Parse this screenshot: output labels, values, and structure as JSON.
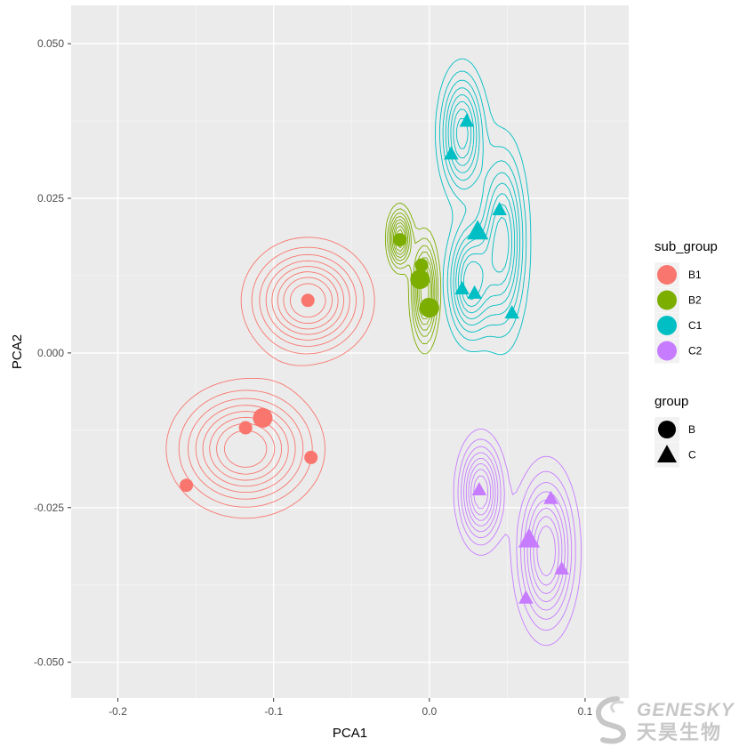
{
  "chart_data": {
    "type": "scatter",
    "title": "",
    "xlabel": "PCA1",
    "ylabel": "PCA2",
    "xlim": [
      -0.23,
      0.128
    ],
    "ylim": [
      -0.0558,
      0.0562
    ],
    "x_ticks": [
      -0.2,
      -0.1,
      0.0,
      0.1
    ],
    "x_tick_labels": [
      "-0.2",
      "-0.1",
      "0.0",
      "0.1"
    ],
    "y_ticks": [
      -0.05,
      -0.025,
      0.0,
      0.025,
      0.05
    ],
    "y_tick_labels": [
      "-0.050",
      "-0.025",
      "0.000",
      "0.025",
      "0.050"
    ],
    "grid": true,
    "panel_background": "#ebebeb",
    "legend_position": "right",
    "legends": [
      {
        "title": "sub_group",
        "entries": [
          {
            "label": "B1",
            "color": "#f8766d"
          },
          {
            "label": "B2",
            "color": "#7cae00"
          },
          {
            "label": "C1",
            "color": "#00bfc4"
          },
          {
            "label": "C2",
            "color": "#c77cff"
          }
        ]
      },
      {
        "title": "group",
        "entries": [
          {
            "label": "B",
            "shape": "circle"
          },
          {
            "label": "C",
            "shape": "triangle"
          }
        ]
      }
    ],
    "series": [
      {
        "sub_group": "B1",
        "group": "B",
        "shape": "circle",
        "color": "#f8766d",
        "points": [
          {
            "x": -0.078,
            "y": 0.0085,
            "big": false
          },
          {
            "x": -0.107,
            "y": -0.0105,
            "big": true
          },
          {
            "x": -0.118,
            "y": -0.0121,
            "big": false
          },
          {
            "x": -0.076,
            "y": -0.0169,
            "big": false
          },
          {
            "x": -0.156,
            "y": -0.0214,
            "big": false
          }
        ],
        "density_clusters": [
          {
            "x": -0.078,
            "y": 0.0085,
            "sx": 0.021,
            "sy": 0.005
          },
          {
            "x": -0.118,
            "y": -0.0155,
            "sx": 0.025,
            "sy": 0.0055
          }
        ]
      },
      {
        "sub_group": "B2",
        "group": "B",
        "shape": "circle",
        "color": "#7cae00",
        "points": [
          {
            "x": -0.019,
            "y": 0.0183,
            "big": false
          },
          {
            "x": -0.005,
            "y": 0.0142,
            "big": false
          },
          {
            "x": -0.006,
            "y": 0.0119,
            "big": true
          },
          {
            "x": -0.001,
            "y": 0.0078,
            "big": false
          },
          {
            "x": 0.0,
            "y": 0.0073,
            "big": true
          }
        ],
        "density_clusters": [
          {
            "x": -0.019,
            "y": 0.0185,
            "sx": 0.0045,
            "sy": 0.0028
          },
          {
            "x": -0.003,
            "y": 0.01,
            "sx": 0.005,
            "sy": 0.005
          }
        ]
      },
      {
        "sub_group": "C1",
        "group": "C",
        "shape": "triangle",
        "color": "#00bfc4",
        "points": [
          {
            "x": 0.024,
            "y": 0.0375,
            "big": false
          },
          {
            "x": 0.014,
            "y": 0.0322,
            "big": false
          },
          {
            "x": 0.045,
            "y": 0.0232,
            "big": false
          },
          {
            "x": 0.031,
            "y": 0.0197,
            "big": true
          },
          {
            "x": 0.021,
            "y": 0.0104,
            "big": false
          },
          {
            "x": 0.029,
            "y": 0.0097,
            "big": false
          },
          {
            "x": 0.053,
            "y": 0.0065,
            "big": false
          }
        ],
        "density_clusters": [
          {
            "x": 0.021,
            "y": 0.0355,
            "sx": 0.0085,
            "sy": 0.006
          },
          {
            "x": 0.026,
            "y": 0.0115,
            "sx": 0.0085,
            "sy": 0.0055
          },
          {
            "x": 0.047,
            "y": 0.018,
            "sx": 0.009,
            "sy": 0.009
          }
        ]
      },
      {
        "sub_group": "C2",
        "group": "C",
        "shape": "triangle",
        "color": "#c77cff",
        "points": [
          {
            "x": 0.032,
            "y": -0.0221,
            "big": false
          },
          {
            "x": 0.078,
            "y": -0.0235,
            "big": false
          },
          {
            "x": 0.064,
            "y": -0.0301,
            "big": true
          },
          {
            "x": 0.085,
            "y": -0.0349,
            "big": false
          },
          {
            "x": 0.062,
            "y": -0.0396,
            "big": false
          }
        ],
        "density_clusters": [
          {
            "x": 0.033,
            "y": -0.0225,
            "sx": 0.0085,
            "sy": 0.005
          },
          {
            "x": 0.075,
            "y": -0.032,
            "sx": 0.011,
            "sy": 0.0075
          }
        ]
      }
    ]
  },
  "watermark": {
    "name_en": "GENESKY",
    "name_cn": "天昊生物",
    "color": "#c7c7c7"
  }
}
